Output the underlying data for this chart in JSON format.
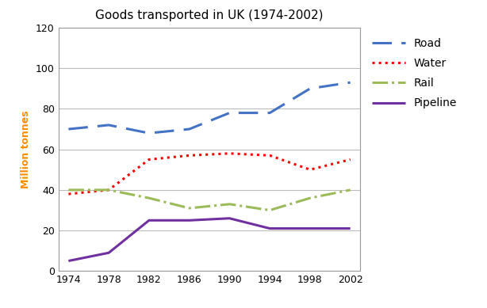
{
  "title": "Goods transported in UK (1974-2002)",
  "ylabel": "Million tonnes",
  "years": [
    1974,
    1978,
    1982,
    1986,
    1990,
    1994,
    1998,
    2002
  ],
  "series": {
    "Road": {
      "values": [
        70,
        72,
        68,
        70,
        78,
        78,
        90,
        93
      ],
      "color": "#4472C4",
      "linestyle": "--",
      "marker": null,
      "markersize": 0,
      "linewidth": 2.2,
      "dashes": [
        8,
        4
      ]
    },
    "Water": {
      "values": [
        38,
        40,
        55,
        57,
        58,
        57,
        50,
        55
      ],
      "color": "#FF0000",
      "linestyle": ":",
      "marker": null,
      "markersize": 0,
      "linewidth": 2.2,
      "dashes": null
    },
    "Rail": {
      "values": [
        40,
        40,
        36,
        31,
        33,
        30,
        36,
        40
      ],
      "color": "#9BBB59",
      "linestyle": "-.",
      "marker": null,
      "markersize": 0,
      "linewidth": 2.2,
      "dashes": null
    },
    "Pipeline": {
      "values": [
        5,
        9,
        25,
        25,
        26,
        21,
        21,
        21
      ],
      "color": "#7030A0",
      "linestyle": "-",
      "marker": null,
      "markersize": 0,
      "linewidth": 2.2,
      "dashes": null
    }
  },
  "ylim": [
    0,
    120
  ],
  "yticks": [
    0,
    20,
    40,
    60,
    80,
    100,
    120
  ],
  "xlim": [
    1973,
    2003
  ],
  "xticks": [
    1974,
    1978,
    1982,
    1986,
    1990,
    1994,
    1998,
    2002
  ],
  "background_color": "#FFFFFF",
  "plot_bg_color": "#FFFFFF",
  "grid_color": "#BBBBBB",
  "title_fontsize": 11,
  "label_fontsize": 9,
  "tick_fontsize": 9,
  "legend_fontsize": 10
}
